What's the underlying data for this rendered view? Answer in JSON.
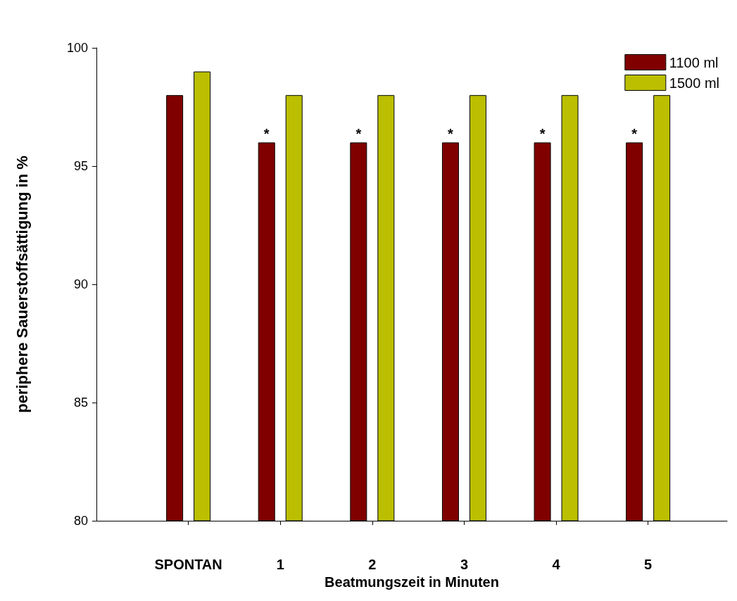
{
  "chart_data": {
    "type": "bar",
    "xlabel": "Beatmungszeit in Minuten",
    "ylabel": "periphere Sauerstoffsättigung in %",
    "categories": [
      "SPONTAN",
      "1",
      "2",
      "3",
      "4",
      "5"
    ],
    "series": [
      {
        "name": "1100 ml",
        "color": "#800000",
        "values": [
          98,
          96,
          96,
          96,
          96,
          96
        ],
        "value_labels": [
          null,
          "*",
          "*",
          "*",
          "*",
          "*"
        ]
      },
      {
        "name": "1500 ml",
        "color": "#bbbf00",
        "values": [
          99,
          98,
          98,
          98,
          98,
          98
        ]
      }
    ],
    "ylim": [
      80,
      100
    ],
    "yticks": [
      80,
      85,
      90,
      95,
      100
    ],
    "grid": false,
    "legend": "top right"
  }
}
